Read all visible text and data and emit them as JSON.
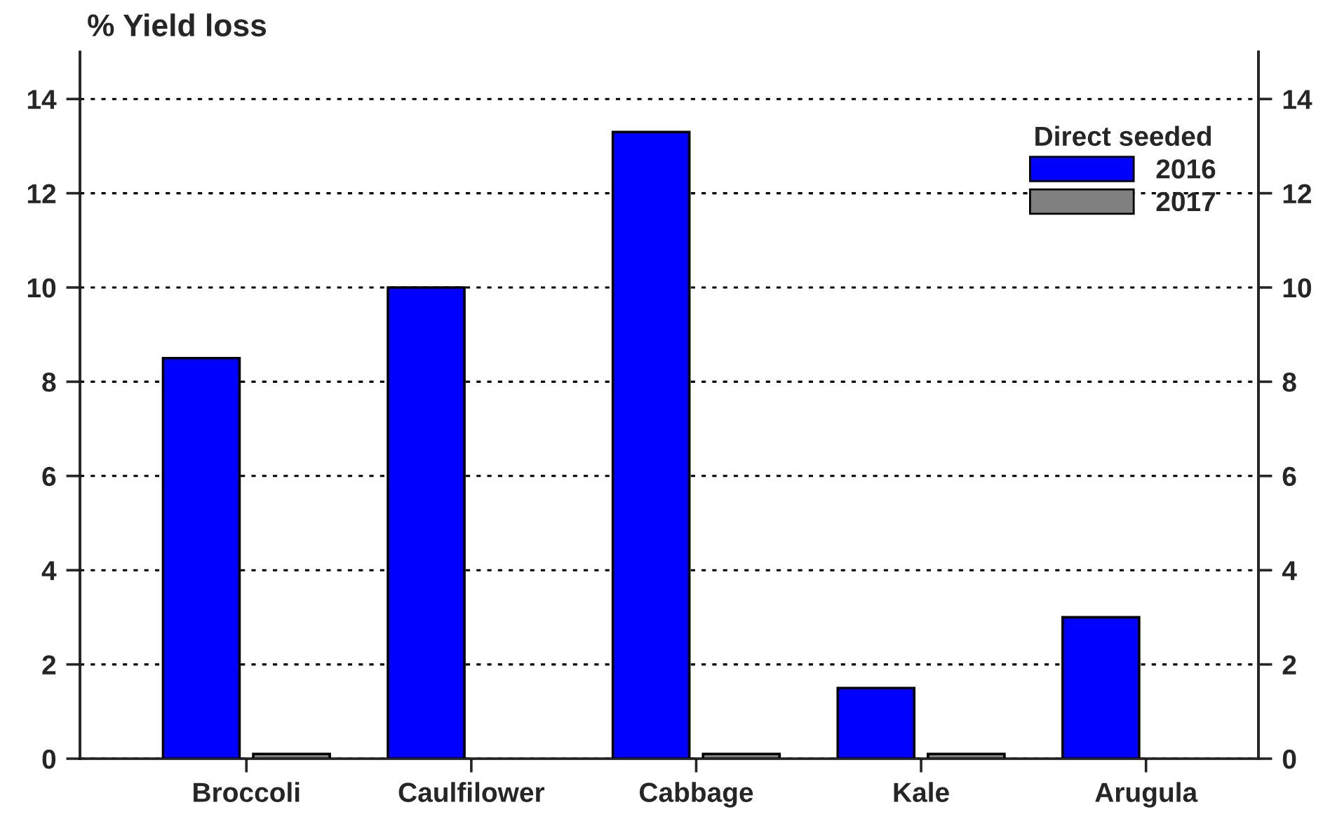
{
  "chart_data": {
    "type": "bar",
    "ylabel": "% Yield loss",
    "legend_title": "Direct seeded",
    "categories": [
      "Broccoli",
      "Caulfilower",
      "Cabbage",
      "Kale",
      "Arugula"
    ],
    "series": [
      {
        "name": "2016",
        "color": "#0000ff",
        "values": [
          8.5,
          10,
          13.3,
          1.5,
          3
        ]
      },
      {
        "name": "2017",
        "color": "#808080",
        "values": [
          0.1,
          null,
          0.1,
          0.1,
          null
        ]
      }
    ],
    "ylim": [
      0,
      15
    ],
    "yticks": [
      0,
      2,
      4,
      6,
      8,
      10,
      12,
      14
    ],
    "y2lim": [
      0,
      15
    ],
    "y2ticks": [
      0,
      2,
      4,
      6,
      8,
      10,
      12,
      14
    ],
    "grid": "y",
    "legend": "top right"
  }
}
